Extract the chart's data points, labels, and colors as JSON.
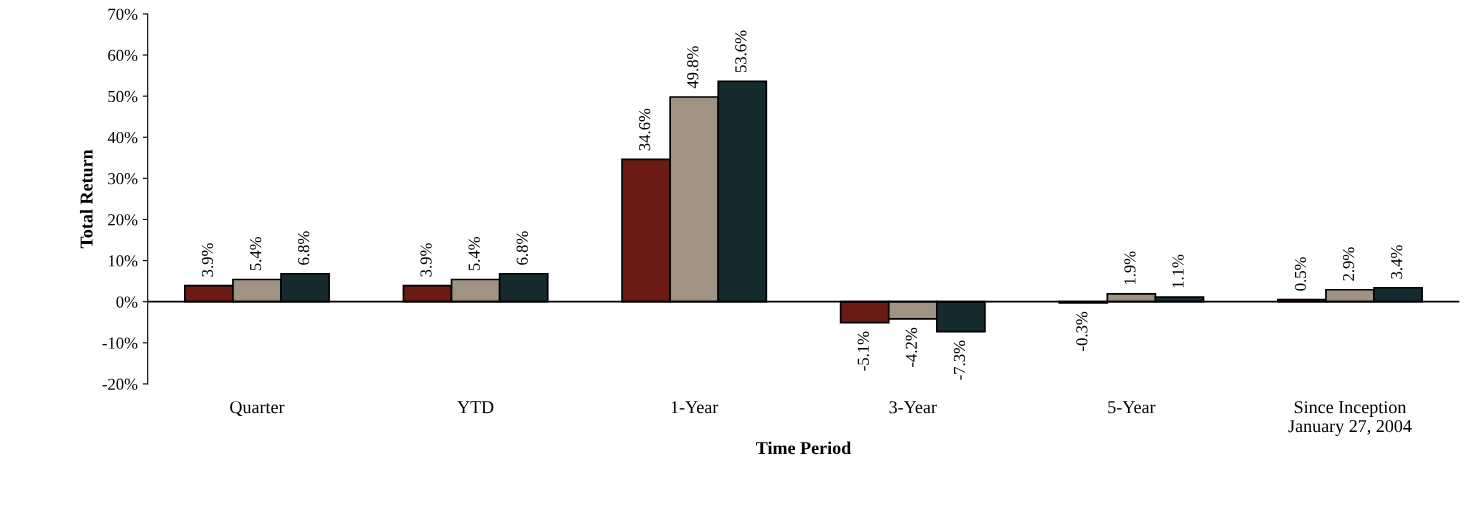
{
  "chart_data": {
    "type": "bar",
    "xlabel": "Time Period",
    "ylabel": "Total Return",
    "categories": [
      "Quarter",
      "YTD",
      "1-Year",
      "3-Year",
      "5-Year",
      "Since Inception\nJanuary 27, 2004"
    ],
    "series": [
      {
        "color": "#6b1a14",
        "values": [
          3.9,
          3.9,
          34.6,
          -5.1,
          -0.3,
          0.5
        ],
        "value_labels": [
          "3.9%",
          "3.9%",
          "34.6%",
          "-5.1%",
          "-0.3%",
          "0.5%"
        ]
      },
      {
        "color": "#a09383",
        "values": [
          5.4,
          5.4,
          49.8,
          -4.2,
          1.9,
          2.9
        ],
        "value_labels": [
          "5.4%",
          "5.4%",
          "49.8%",
          "-4.2%",
          "1.9%",
          "2.9%"
        ]
      },
      {
        "color": "#152b30",
        "values": [
          6.8,
          6.8,
          53.6,
          -7.3,
          1.1,
          3.4
        ],
        "value_labels": [
          "6.8%",
          "6.8%",
          "53.6%",
          "-7.3%",
          "1.1%",
          "3.4%"
        ]
      }
    ],
    "ylim": [
      -20,
      70
    ],
    "yticks": [
      {
        "value": -20,
        "label": "-20%"
      },
      {
        "value": -10,
        "label": "-10%"
      },
      {
        "value": 0,
        "label": "0%"
      },
      {
        "value": 10,
        "label": "10%"
      },
      {
        "value": 20,
        "label": "20%"
      },
      {
        "value": 30,
        "label": "30%"
      },
      {
        "value": 40,
        "label": "40%"
      },
      {
        "value": 50,
        "label": "50%"
      },
      {
        "value": 60,
        "label": "60%"
      },
      {
        "value": 70,
        "label": "70%"
      }
    ],
    "ref_lines": [
      {
        "axis": "y",
        "value": 0,
        "color": "#000000"
      }
    ],
    "grid": false
  }
}
